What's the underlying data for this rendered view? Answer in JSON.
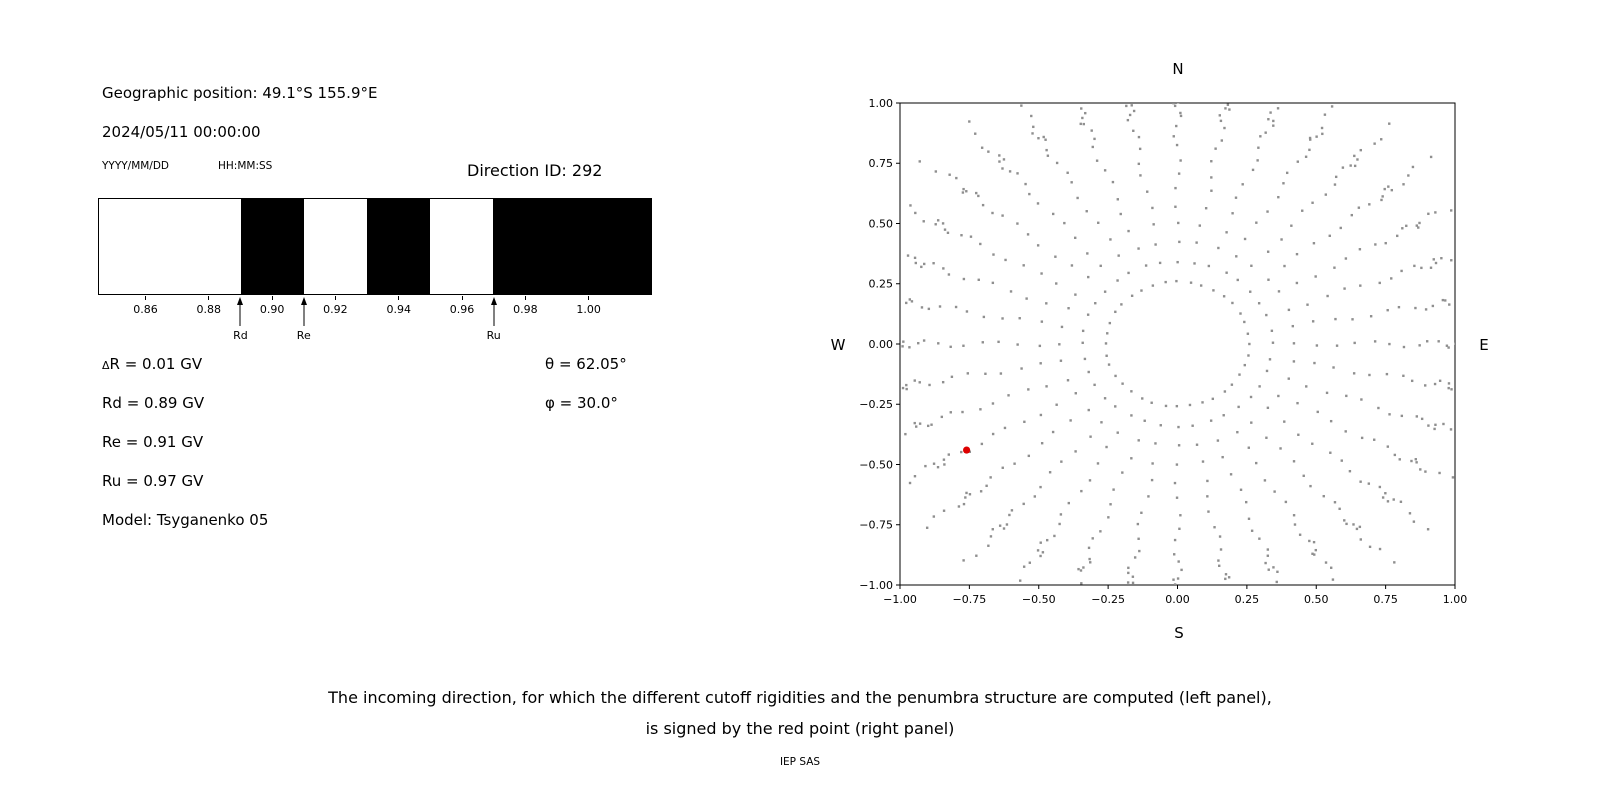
{
  "left_panel": {
    "geo_position": "Geographic position: 49.1°S 155.9°E",
    "datetime": "2024/05/11 00:00:00",
    "date_format_label": "YYYY/MM/DD",
    "time_format_label": "HH:MM:SS",
    "direction_id": "Direction ID: 292",
    "params": {
      "delta_r": "ΔR = 0.01 GV",
      "rd": "Rd = 0.89 GV",
      "re": "Re = 0.91 GV",
      "ru": "Ru = 0.97 GV",
      "model": "Model: Tsyganenko 05",
      "theta": "θ = 62.05°",
      "phi": "φ = 30.0°"
    }
  },
  "caption": {
    "line1": "The incoming direction, for which the different cutoff rigidities and the penumbra structure are computed (left panel),",
    "line2": "is signed by the red point (right panel)",
    "credit": "IEP SAS"
  },
  "chart_data": [
    {
      "type": "bar",
      "name": "penumbra-structure",
      "xlim": [
        0.845,
        1.02
      ],
      "xticks": [
        0.86,
        0.88,
        0.9,
        0.92,
        0.94,
        0.96,
        0.98,
        1.0
      ],
      "xtick_labels": [
        "0.86",
        "0.88",
        "0.90",
        "0.92",
        "0.94",
        "0.96",
        "0.98",
        "1.00"
      ],
      "black_bands": [
        [
          0.89,
          0.91
        ],
        [
          0.93,
          0.95
        ],
        [
          0.97,
          1.02
        ]
      ],
      "band_color": "#000000",
      "markers": [
        {
          "label": "Rd",
          "x": 0.89
        },
        {
          "label": "Re",
          "x": 0.91
        },
        {
          "label": "Ru",
          "x": 0.97
        }
      ]
    },
    {
      "type": "scatter",
      "name": "asymptotic-directions-map",
      "xlim": [
        -1,
        1
      ],
      "ylim": [
        -1,
        1
      ],
      "xticks": [
        -1,
        -0.75,
        -0.5,
        -0.25,
        0,
        0.25,
        0.5,
        0.75,
        1
      ],
      "xtick_labels": [
        "−1.00",
        "−0.75",
        "−0.50",
        "−0.25",
        "0.00",
        "0.25",
        "0.50",
        "0.75",
        "1.00"
      ],
      "yticks": [
        -1,
        -0.75,
        -0.5,
        -0.25,
        0,
        0.25,
        0.5,
        0.75,
        1
      ],
      "ytick_labels": [
        "−1.00",
        "−0.75",
        "−0.50",
        "−0.25",
        "0.00",
        "0.25",
        "0.50",
        "0.75",
        "1.00"
      ],
      "compass": {
        "top": "N",
        "bottom": "S",
        "left": "W",
        "right": "E"
      },
      "grid": false,
      "dot_color": "#8f8f8f",
      "spokes": {
        "azimuth_count": 36,
        "azimuth_step_deg": 10,
        "radii": [
          0.259,
          0.342,
          0.423,
          0.5,
          0.574,
          0.643,
          0.707,
          0.766,
          0.819,
          0.866,
          0.906,
          0.94,
          0.966,
          0.985,
          0.996,
          1.01,
          1.045,
          1.085,
          1.13,
          1.19
        ]
      },
      "red_point": {
        "x": -0.76,
        "y": -0.44,
        "color": "#dd0000"
      }
    }
  ]
}
